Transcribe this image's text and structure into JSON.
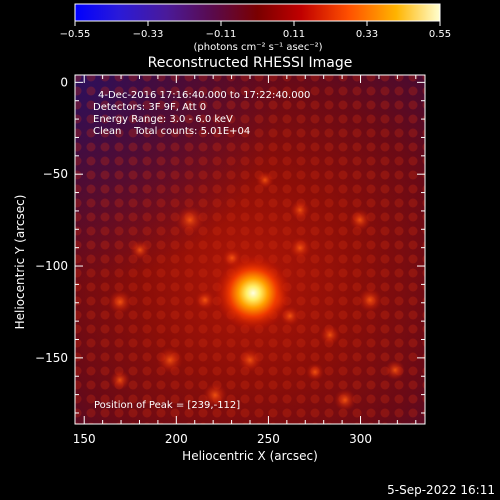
{
  "colorbar": {
    "ticks": [
      "-0.55",
      "-0.33",
      "-0.11",
      "0.11",
      "0.33",
      "0.55"
    ],
    "unit_label": "(photons cm⁻² s⁻¹ asec⁻²)"
  },
  "plot": {
    "title": "Reconstructed RHESSI Image",
    "annotation_lines": [
      "4-Dec-2016 17:16:40.000 to 17:22:40.000",
      "Detectors: 3F 9F, Att 0",
      "Energy Range: 3.0 - 6.0 keV",
      "Clean    Total counts: 5.01E+04"
    ],
    "peak_text": "Position of Peak = [239,-112]",
    "x_axis_label": "Heliocentric X (arcsec)",
    "y_axis_label": "Heliocentric Y (arcsec)",
    "x_ticks": [
      "150",
      "200",
      "250",
      "300"
    ],
    "y_ticks": [
      "0",
      "−50",
      "−100",
      "−150"
    ],
    "peak_position": [
      239,
      -112
    ]
  },
  "footer": {
    "timestamp": "5-Sep-2022 16:11"
  }
}
